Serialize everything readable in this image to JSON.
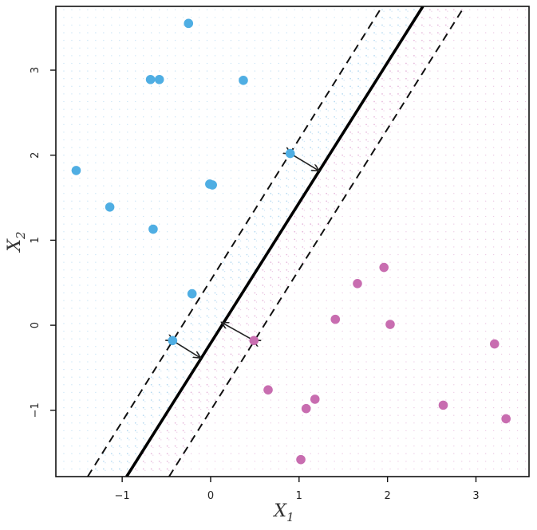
{
  "chart_data": {
    "type": "scatter",
    "title": "",
    "xlabel": "X1",
    "ylabel": "X2",
    "xlabel_main": "X",
    "xlabel_sub": "1",
    "ylabel_main": "X",
    "ylabel_sub": "2",
    "xlim": [
      -1.75,
      3.6
    ],
    "ylim": [
      -1.78,
      3.75
    ],
    "xticks": [
      -1,
      0,
      1,
      2,
      3
    ],
    "yticks": [
      -1,
      0,
      1,
      2,
      3
    ],
    "x_tick_labels": [
      "−1",
      "0",
      "1",
      "2",
      "3"
    ],
    "y_tick_labels": [
      "−1",
      "0",
      "1",
      "2",
      "3"
    ],
    "grid": false,
    "legend": "none",
    "colors": {
      "blue": "#4FAEE3",
      "magenta": "#C86DB0",
      "line": "#000000",
      "frame": "#111111",
      "blue_grid": "#73B8E6",
      "magenta_grid": "#CF79BC"
    },
    "series": [
      {
        "color": "blue",
        "points": [
          [
            -0.25,
            3.55
          ],
          [
            -0.68,
            2.89
          ],
          [
            -0.58,
            2.89
          ],
          [
            0.37,
            2.88
          ],
          [
            -1.52,
            1.82
          ],
          [
            -1.14,
            1.39
          ],
          [
            -0.65,
            1.13
          ],
          [
            -0.01,
            1.66
          ],
          [
            0.02,
            1.65
          ],
          [
            0.9,
            2.02
          ],
          [
            -0.21,
            0.37
          ],
          [
            -0.43,
            -0.18
          ]
        ]
      },
      {
        "color": "magenta",
        "points": [
          [
            1.96,
            0.68
          ],
          [
            1.66,
            0.49
          ],
          [
            1.41,
            0.07
          ],
          [
            2.03,
            0.01
          ],
          [
            0.49,
            -0.18
          ],
          [
            0.65,
            -0.76
          ],
          [
            1.18,
            -0.87
          ],
          [
            1.08,
            -0.98
          ],
          [
            2.63,
            -0.94
          ],
          [
            3.21,
            -0.22
          ],
          [
            3.34,
            -1.1
          ],
          [
            1.02,
            -1.58
          ]
        ]
      }
    ],
    "separating_line": {
      "type": "solid",
      "points": [
        [
          -0.95,
          -1.78
        ],
        [
          2.4,
          3.75
        ]
      ]
    },
    "margin_lines": [
      {
        "type": "dashed",
        "points": [
          [
            -1.39,
            -1.78
          ],
          [
            1.94,
            3.75
          ]
        ]
      },
      {
        "type": "dashed",
        "points": [
          [
            -0.47,
            -1.78
          ],
          [
            2.87,
            3.75
          ]
        ]
      }
    ],
    "support_arrows": [
      {
        "from": [
          0.9,
          2.02
        ],
        "to": [
          1.22,
          1.82
        ]
      },
      {
        "from": [
          -0.43,
          -0.18
        ],
        "to": [
          -0.12,
          -0.38
        ]
      },
      {
        "from": [
          0.49,
          -0.18
        ],
        "to": [
          0.13,
          0.03
        ]
      }
    ]
  }
}
